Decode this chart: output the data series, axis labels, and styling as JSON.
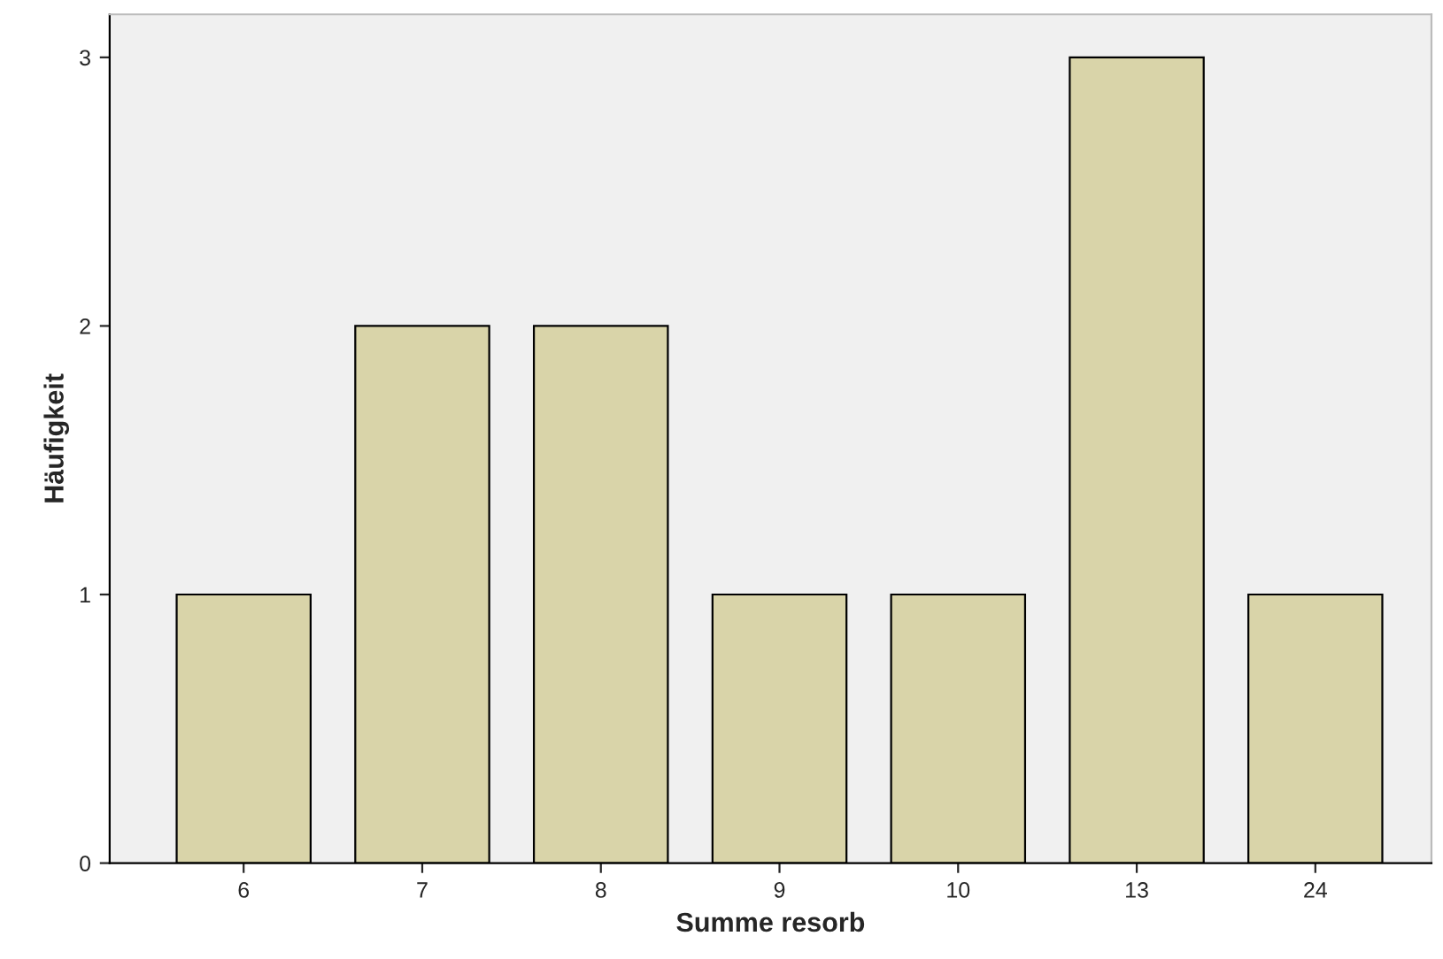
{
  "chart_data": {
    "type": "bar",
    "xlabel": "Summe resorb",
    "ylabel": "Häufigkeit",
    "categories": [
      "6",
      "7",
      "8",
      "9",
      "10",
      "13",
      "24"
    ],
    "values": [
      1,
      2,
      2,
      1,
      1,
      3,
      1
    ],
    "color": "#d9d4a9",
    "ylim": [
      0,
      3.16
    ],
    "yticks": [
      0,
      1,
      2,
      3
    ],
    "grid": false
  }
}
